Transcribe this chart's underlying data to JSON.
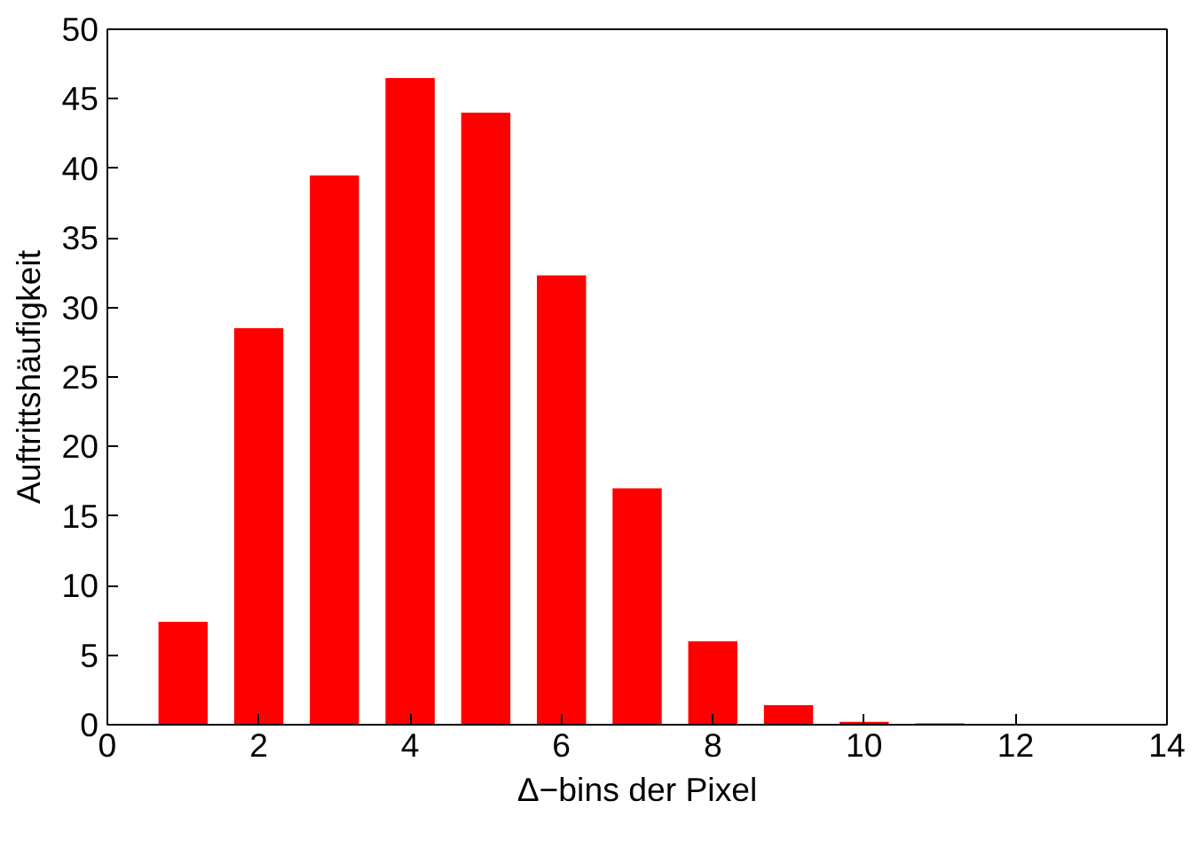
{
  "chart_data": {
    "type": "bar",
    "xlabel": "Δ−bins der Pixel",
    "ylabel": "Auftrittshäufigkeit",
    "x": [
      1,
      2,
      3,
      4,
      5,
      6,
      7,
      8,
      9,
      10,
      11
    ],
    "values": [
      7.4,
      28.5,
      39.5,
      46.5,
      44,
      32.3,
      17,
      6,
      1.4,
      0.2,
      0.1
    ],
    "color": "#ff0000",
    "xlim": [
      0,
      14
    ],
    "ylim": [
      0,
      50
    ],
    "xticks": [
      0,
      2,
      4,
      6,
      8,
      10,
      12,
      14
    ],
    "yticks": [
      0,
      5,
      10,
      15,
      20,
      25,
      30,
      35,
      40,
      45,
      50
    ],
    "grid": false
  }
}
